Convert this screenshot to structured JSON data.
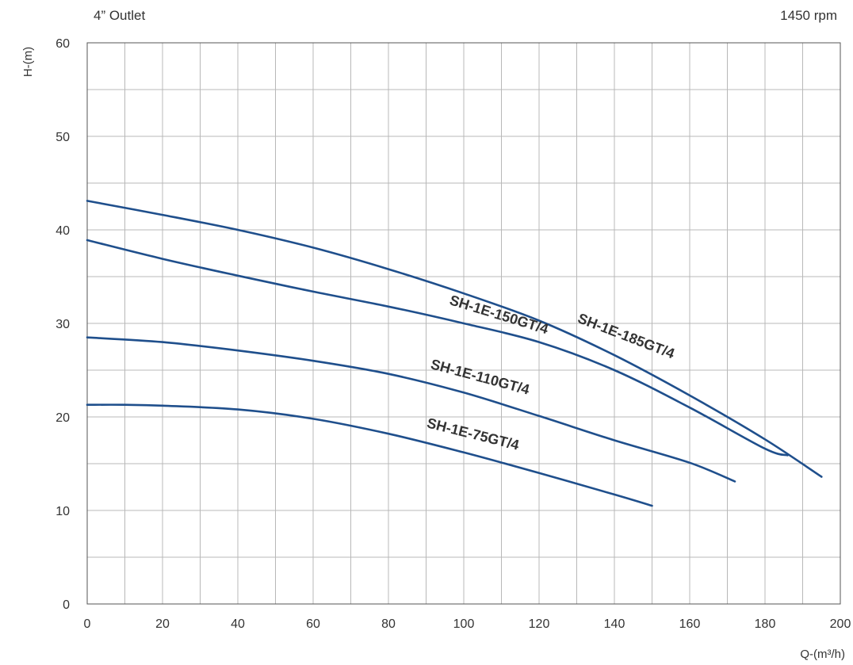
{
  "header": {
    "left_title": "4” Outlet",
    "right_title": "1450 rpm"
  },
  "chart_data": {
    "type": "line",
    "title": "",
    "xlabel": "Q-(m³/h)",
    "ylabel": "H-(m)",
    "xlim": [
      0,
      200
    ],
    "ylim": [
      0,
      60
    ],
    "x_ticks": [
      0,
      20,
      40,
      60,
      80,
      100,
      120,
      140,
      160,
      180,
      200
    ],
    "y_ticks": [
      0,
      10,
      20,
      30,
      40,
      50,
      60
    ],
    "grid": true,
    "line_color": "#1f4f8c",
    "series": [
      {
        "name": "SH-1E-185GT/4",
        "x": [
          0,
          20,
          40,
          60,
          80,
          100,
          120,
          140,
          160,
          180,
          195
        ],
        "y": [
          43.1,
          41.6,
          40.0,
          38.1,
          35.8,
          33.2,
          30.3,
          26.6,
          22.3,
          17.6,
          13.6
        ]
      },
      {
        "name": "SH-1E-150GT/4",
        "x": [
          0,
          20,
          40,
          60,
          80,
          100,
          120,
          140,
          160,
          180,
          186
        ],
        "y": [
          38.9,
          36.9,
          35.1,
          33.4,
          31.8,
          30.0,
          28.0,
          25.0,
          21.0,
          16.6,
          15.9
        ]
      },
      {
        "name": "SH-1E-110GT/4",
        "x": [
          0,
          20,
          40,
          60,
          80,
          100,
          120,
          140,
          160,
          172
        ],
        "y": [
          28.5,
          28.0,
          27.1,
          26.0,
          24.6,
          22.6,
          20.1,
          17.5,
          15.1,
          13.1
        ]
      },
      {
        "name": "SH-1E-75GT/4",
        "x": [
          0,
          10,
          20,
          40,
          60,
          80,
          100,
          120,
          140,
          150
        ],
        "y": [
          21.3,
          21.3,
          21.2,
          20.8,
          19.8,
          18.2,
          16.2,
          14.0,
          11.7,
          10.5
        ]
      }
    ]
  }
}
